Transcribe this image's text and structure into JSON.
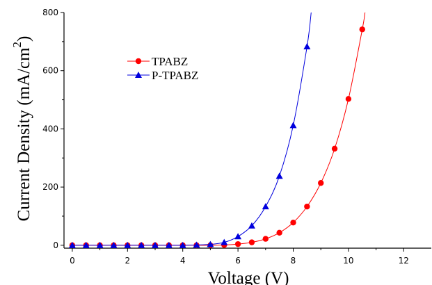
{
  "chart_data": {
    "type": "line",
    "title": "",
    "xlabel": "Voltage (V)",
    "ylabel_main": "Current Density (mA/cm",
    "ylabel_sup": "2",
    "ylabel_close": ")",
    "xlim": [
      -0.3,
      13
    ],
    "ylim": [
      -10,
      800
    ],
    "xticks": [
      0,
      2,
      4,
      6,
      8,
      10,
      12
    ],
    "yticks": [
      0,
      200,
      400,
      600,
      800
    ],
    "legend_position": "upper-left",
    "grid": false,
    "series": [
      {
        "name": "TPABZ",
        "color": "#ff0000",
        "marker": "circle",
        "x": [
          0,
          0.5,
          1,
          1.5,
          2,
          2.5,
          3,
          3.5,
          4,
          4.5,
          5,
          5.5,
          6,
          6.5,
          7,
          7.5,
          8,
          8.5,
          9,
          9.5,
          10,
          10.5
        ],
        "y": [
          0,
          0,
          0,
          0,
          0,
          0,
          0,
          0,
          0,
          0,
          0,
          1,
          4,
          10,
          22,
          43,
          78,
          133,
          214,
          332,
          503,
          742
        ],
        "curve_end": [
          10.6,
          800
        ]
      },
      {
        "name": "P-TPABZ",
        "color": "#0000dd",
        "marker": "triangle",
        "x": [
          0,
          0.5,
          1,
          1.5,
          2,
          2.5,
          3,
          3.5,
          4,
          4.5,
          5,
          5.5,
          6,
          6.5,
          7,
          7.5,
          8,
          8.5
        ],
        "y": [
          0,
          0,
          0,
          0,
          0,
          0,
          0,
          0,
          0,
          1,
          3,
          10,
          30,
          67,
          133,
          238,
          412,
          683
        ],
        "curve_end": [
          8.65,
          800
        ]
      }
    ]
  }
}
